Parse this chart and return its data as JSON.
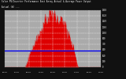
{
  "title_line1": "Solar PV/Inverter Performance East Array Actual & Average Power Output",
  "title_line2": "Actual (W) ---",
  "bg_color": "#111111",
  "plot_bg_color": "#aaaaaa",
  "bar_color": "#dd0000",
  "avg_line_color": "#0000ee",
  "grid_color": "#ffffff",
  "avg_value": 520,
  "ylim": [
    0,
    1800
  ],
  "num_points": 144,
  "peak": 1650,
  "peak_index": 72,
  "ytick_vals": [
    0,
    180,
    360,
    540,
    720,
    900,
    1080,
    1260,
    1440,
    1620,
    1800
  ],
  "num_vgrid": 9,
  "num_hgrid": 11
}
